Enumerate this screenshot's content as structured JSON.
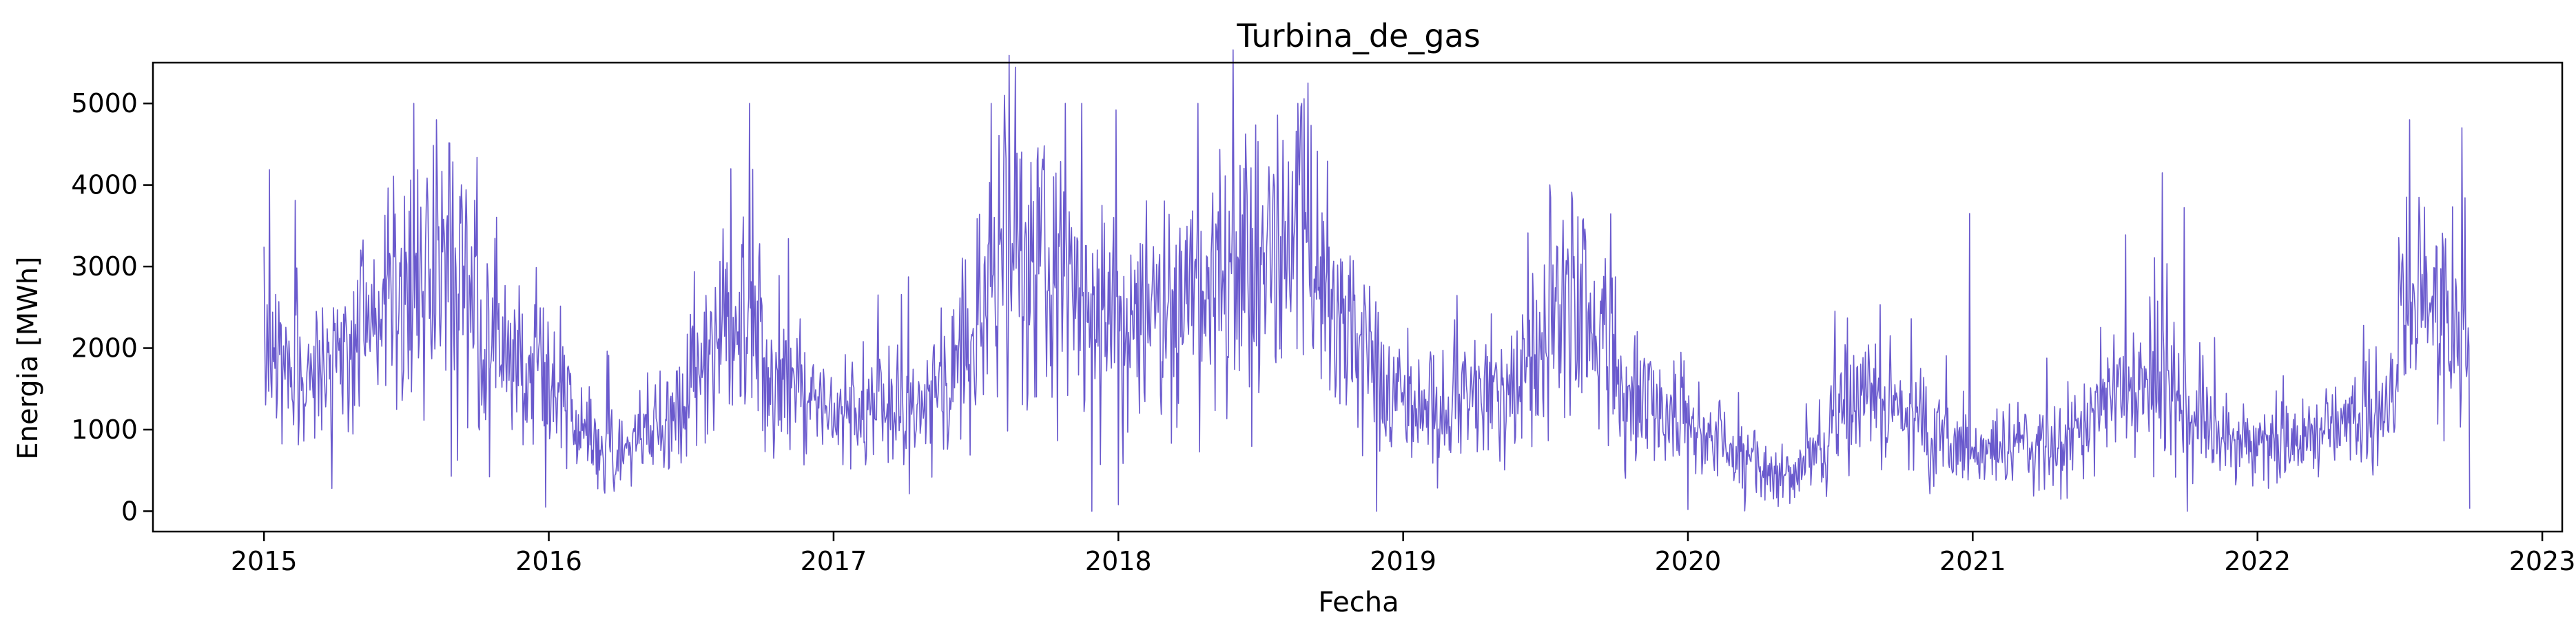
{
  "chart_data": {
    "type": "line",
    "title": "Turbina_de_gas",
    "xlabel": "Fecha",
    "ylabel": "Energia [MWh]",
    "x_range": [
      "2014-08-10",
      "2023-01-25"
    ],
    "xlim_years": [
      2014.61,
      2023.07
    ],
    "ylim": [
      -250,
      5500
    ],
    "x_ticks": [
      "2015",
      "2016",
      "2017",
      "2018",
      "2019",
      "2020",
      "2021",
      "2022",
      "2023"
    ],
    "y_ticks": [
      "0",
      "1000",
      "2000",
      "3000",
      "4000",
      "5000"
    ],
    "grid": false,
    "line_color": "#6a5acd",
    "series": [
      {
        "frequency": "daily",
        "start": "2015-01-01",
        "end": "2022-09-30",
        "monthly_baseline": [
          [
            "2015-01",
            2000
          ],
          [
            "2015-02",
            1900
          ],
          [
            "2015-03",
            1800
          ],
          [
            "2015-04",
            2000
          ],
          [
            "2015-05",
            2600
          ],
          [
            "2015-06",
            3000
          ],
          [
            "2015-07",
            3100
          ],
          [
            "2015-08",
            3200
          ],
          [
            "2015-09",
            2800
          ],
          [
            "2015-10",
            2300
          ],
          [
            "2015-11",
            2100
          ],
          [
            "2015-12",
            1900
          ],
          [
            "2016-01",
            1500
          ],
          [
            "2016-02",
            1000
          ],
          [
            "2016-03",
            900
          ],
          [
            "2016-04",
            900
          ],
          [
            "2016-05",
            1100
          ],
          [
            "2016-06",
            1400
          ],
          [
            "2016-07",
            1900
          ],
          [
            "2016-08",
            2500
          ],
          [
            "2016-09",
            2700
          ],
          [
            "2016-10",
            1700
          ],
          [
            "2016-11",
            1500
          ],
          [
            "2016-12",
            1400
          ],
          [
            "2017-01",
            1300
          ],
          [
            "2017-02",
            1400
          ],
          [
            "2017-03",
            1300
          ],
          [
            "2017-04",
            1300
          ],
          [
            "2017-05",
            1600
          ],
          [
            "2017-06",
            2100
          ],
          [
            "2017-07",
            3000
          ],
          [
            "2017-08",
            3600
          ],
          [
            "2017-09",
            3400
          ],
          [
            "2017-10",
            3200
          ],
          [
            "2017-11",
            2900
          ],
          [
            "2017-12",
            2700
          ],
          [
            "2018-01",
            2600
          ],
          [
            "2018-02",
            2700
          ],
          [
            "2018-03",
            2800
          ],
          [
            "2018-04",
            2900
          ],
          [
            "2018-05",
            3200
          ],
          [
            "2018-06",
            3500
          ],
          [
            "2018-07",
            3600
          ],
          [
            "2018-08",
            3700
          ],
          [
            "2018-09",
            3000
          ],
          [
            "2018-10",
            2500
          ],
          [
            "2018-11",
            2000
          ],
          [
            "2018-12",
            1600
          ],
          [
            "2019-01",
            1300
          ],
          [
            "2019-02",
            1400
          ],
          [
            "2019-03",
            1500
          ],
          [
            "2019-04",
            1600
          ],
          [
            "2019-05",
            1600
          ],
          [
            "2019-06",
            1900
          ],
          [
            "2019-07",
            2700
          ],
          [
            "2019-08",
            2700
          ],
          [
            "2019-09",
            2300
          ],
          [
            "2019-10",
            1500
          ],
          [
            "2019-11",
            1400
          ],
          [
            "2019-12",
            1200
          ],
          [
            "2020-01",
            1000
          ],
          [
            "2020-02",
            900
          ],
          [
            "2020-03",
            700
          ],
          [
            "2020-04",
            500
          ],
          [
            "2020-05",
            500
          ],
          [
            "2020-06",
            800
          ],
          [
            "2020-07",
            1400
          ],
          [
            "2020-08",
            1400
          ],
          [
            "2020-09",
            1300
          ],
          [
            "2020-10",
            1200
          ],
          [
            "2020-11",
            1100
          ],
          [
            "2020-12",
            900
          ],
          [
            "2021-01",
            800
          ],
          [
            "2021-02",
            800
          ],
          [
            "2021-03",
            900
          ],
          [
            "2021-04",
            900
          ],
          [
            "2021-05",
            1000
          ],
          [
            "2021-06",
            1400
          ],
          [
            "2021-07",
            1600
          ],
          [
            "2021-08",
            1700
          ],
          [
            "2021-09",
            1700
          ],
          [
            "2021-10",
            1100
          ],
          [
            "2021-11",
            1000
          ],
          [
            "2021-12",
            900
          ],
          [
            "2022-01",
            900
          ],
          [
            "2022-02",
            1000
          ],
          [
            "2022-03",
            1100
          ],
          [
            "2022-04",
            1100
          ],
          [
            "2022-05",
            1200
          ],
          [
            "2022-06",
            1500
          ],
          [
            "2022-07",
            2900
          ],
          [
            "2022-08",
            2700
          ],
          [
            "2022-09",
            2300
          ]
        ],
        "notable_points": [
          [
            "2015-08-10",
            4800
          ],
          [
            "2015-12-28",
            50
          ],
          [
            "2017-08-08",
            5100
          ],
          [
            "2017-11-28",
            0
          ],
          [
            "2018-01-01",
            80
          ],
          [
            "2018-09-01",
            5250
          ],
          [
            "2018-11-28",
            0
          ],
          [
            "2020-01-01",
            20
          ],
          [
            "2020-04-20",
            150
          ],
          [
            "2020-12-28",
            3650
          ],
          [
            "2021-09-01",
            4150
          ],
          [
            "2022-07-15",
            4800
          ],
          [
            "2022-09-20",
            4700
          ],
          [
            "2022-09-30",
            30
          ]
        ]
      }
    ]
  }
}
